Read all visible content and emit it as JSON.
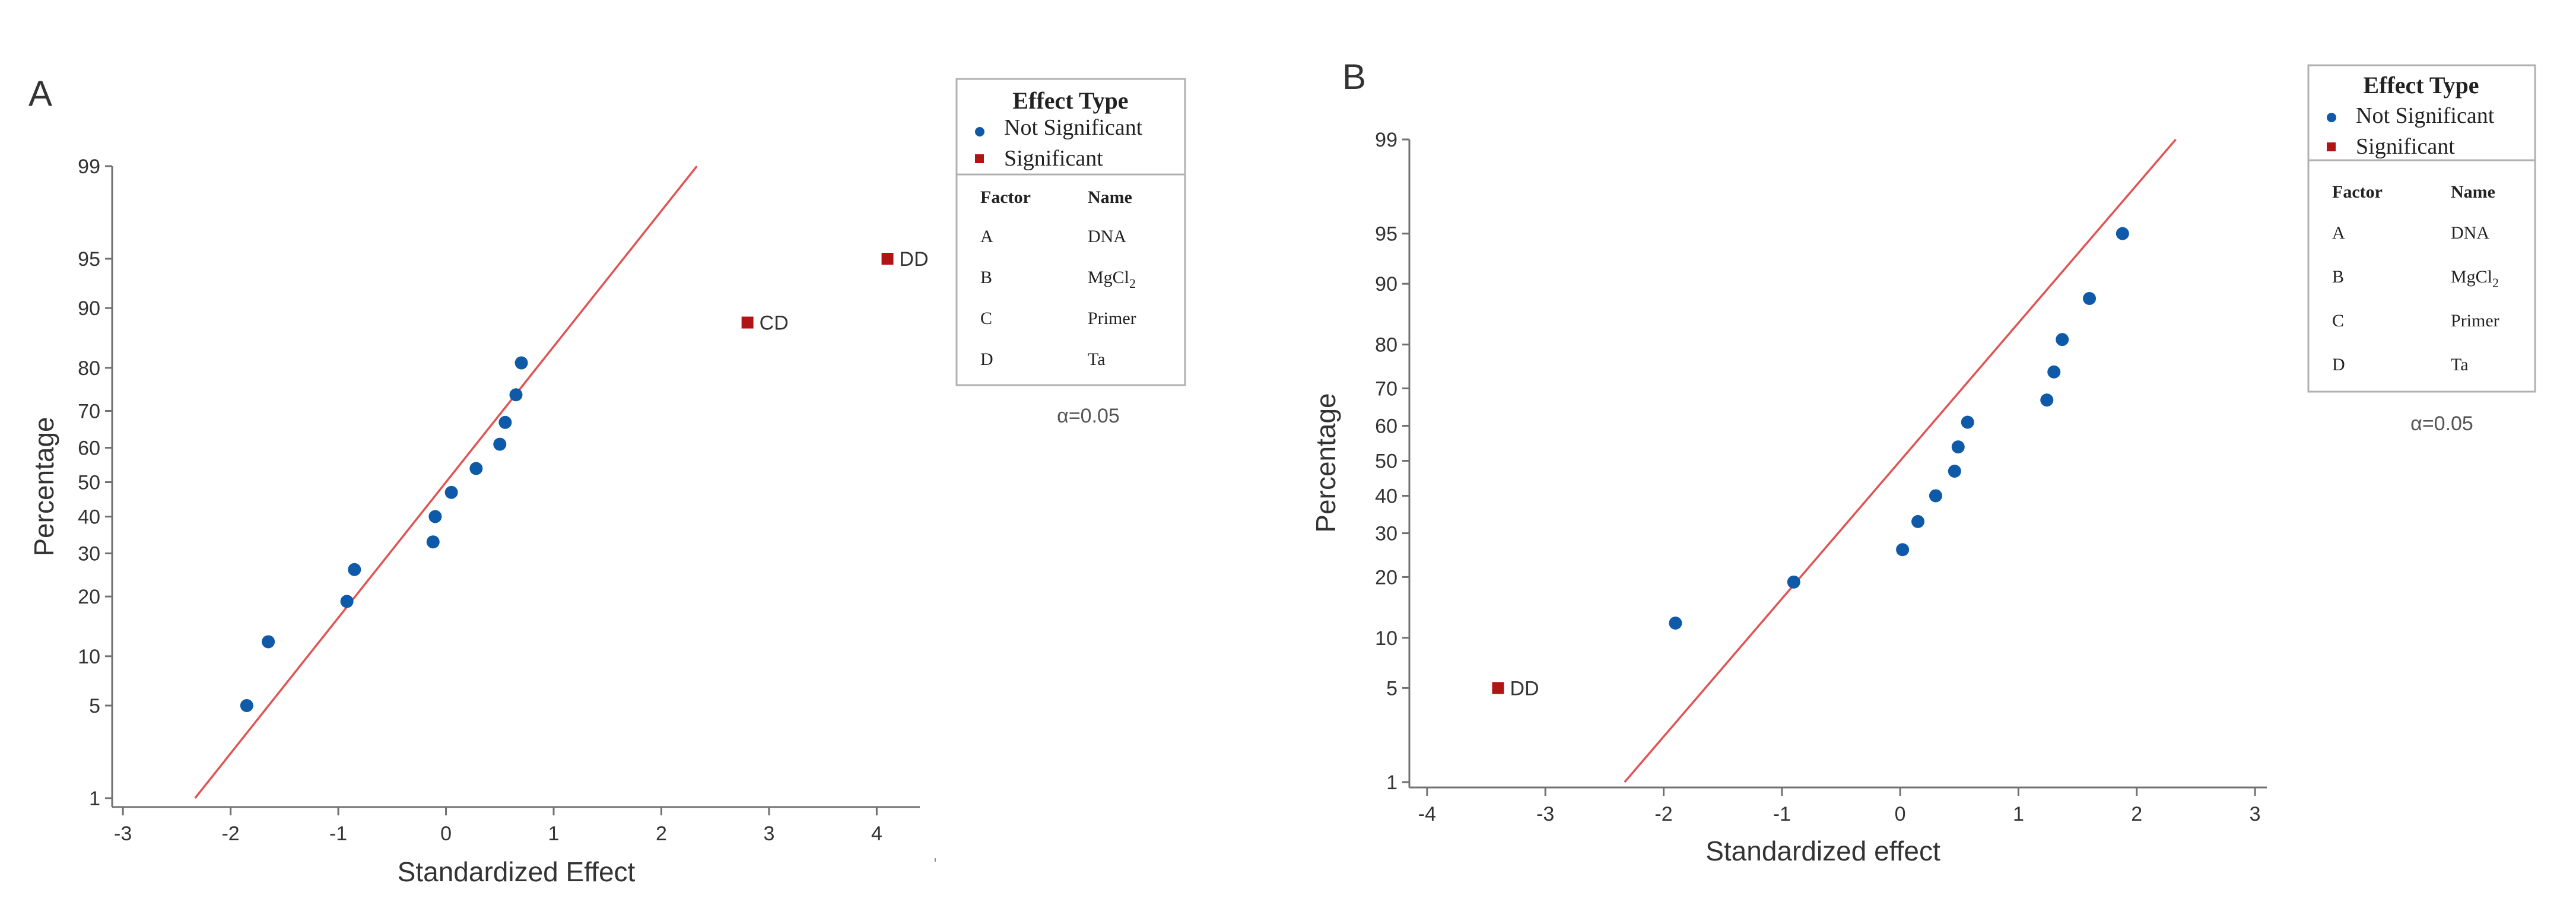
{
  "colors": {
    "not_significant": "#0f5aa8",
    "significant": "#b01414",
    "reference_line": "#e05454",
    "axis": "#707070",
    "text": "#333333"
  },
  "chart_data": [
    {
      "type": "scatter",
      "panel_label": "A",
      "xlabel": "Standardized Effect",
      "ylabel": "Percentage",
      "xlim": [
        -3.1,
        4.4
      ],
      "xticks": [
        -3,
        -2,
        -1,
        0,
        1,
        2,
        3,
        4
      ],
      "yticks": [
        1,
        5,
        10,
        20,
        30,
        40,
        50,
        60,
        70,
        80,
        90,
        95,
        99
      ],
      "reference_line": {
        "from": [
          -2.33,
          1
        ],
        "to": [
          2.33,
          99
        ]
      },
      "series": [
        {
          "name": "Not Significant",
          "points": [
            {
              "x": -1.85,
              "y": 5
            },
            {
              "x": -1.65,
              "y": 12
            },
            {
              "x": -0.92,
              "y": 19
            },
            {
              "x": -0.85,
              "y": 26
            },
            {
              "x": -0.12,
              "y": 33
            },
            {
              "x": -0.1,
              "y": 40
            },
            {
              "x": 0.05,
              "y": 47
            },
            {
              "x": 0.28,
              "y": 54
            },
            {
              "x": 0.5,
              "y": 61
            },
            {
              "x": 0.55,
              "y": 67
            },
            {
              "x": 0.65,
              "y": 74
            },
            {
              "x": 0.7,
              "y": 81
            }
          ]
        },
        {
          "name": "Significant",
          "points": [
            {
              "x": 2.8,
              "y": 88,
              "label": "CD"
            },
            {
              "x": 4.1,
              "y": 95,
              "label": "DD"
            }
          ]
        }
      ],
      "legend": {
        "title": "Effect Type",
        "entries": [
          "Not Significant",
          "Significant"
        ],
        "factor_header": "Factor",
        "name_header": "Name",
        "factors": [
          {
            "factor": "A",
            "name": "DNA"
          },
          {
            "factor": "B",
            "name": "MgCl",
            "sub": "2"
          },
          {
            "factor": "C",
            "name": "Primer"
          },
          {
            "factor": "D",
            "name": "Ta"
          }
        ],
        "alpha": "α=0.05"
      }
    },
    {
      "type": "scatter",
      "panel_label": "B",
      "xlabel": "Standardized effect",
      "ylabel": "Percentage",
      "xlim": [
        -4.15,
        3.1
      ],
      "xticks": [
        -4,
        -3,
        -2,
        -1,
        0,
        1,
        2,
        3
      ],
      "yticks": [
        1,
        5,
        10,
        20,
        30,
        40,
        50,
        60,
        70,
        80,
        90,
        95,
        99
      ],
      "reference_line": {
        "from": [
          -2.33,
          1
        ],
        "to": [
          2.33,
          99
        ]
      },
      "series": [
        {
          "name": "Not Significant",
          "points": [
            {
              "x": -1.9,
              "y": 12
            },
            {
              "x": -0.9,
              "y": 19
            },
            {
              "x": 0.02,
              "y": 26
            },
            {
              "x": 0.15,
              "y": 33
            },
            {
              "x": 0.3,
              "y": 40
            },
            {
              "x": 0.46,
              "y": 47
            },
            {
              "x": 0.49,
              "y": 54
            },
            {
              "x": 0.57,
              "y": 61
            },
            {
              "x": 1.24,
              "y": 67
            },
            {
              "x": 1.3,
              "y": 74
            },
            {
              "x": 1.37,
              "y": 81
            },
            {
              "x": 1.6,
              "y": 88
            },
            {
              "x": 1.88,
              "y": 95
            }
          ]
        },
        {
          "name": "Significant",
          "points": [
            {
              "x": -3.4,
              "y": 5,
              "label": "DD"
            }
          ]
        }
      ],
      "legend": {
        "title": "Effect Type",
        "entries": [
          "Not Significant",
          "Significant"
        ],
        "factor_header": "Factor",
        "name_header": "Name",
        "factors": [
          {
            "factor": "A",
            "name": "DNA"
          },
          {
            "factor": "B",
            "name": "MgCl",
            "sub": "2"
          },
          {
            "factor": "C",
            "name": "Primer"
          },
          {
            "factor": "D",
            "name": "Ta"
          }
        ],
        "alpha": "α=0.05"
      }
    }
  ]
}
